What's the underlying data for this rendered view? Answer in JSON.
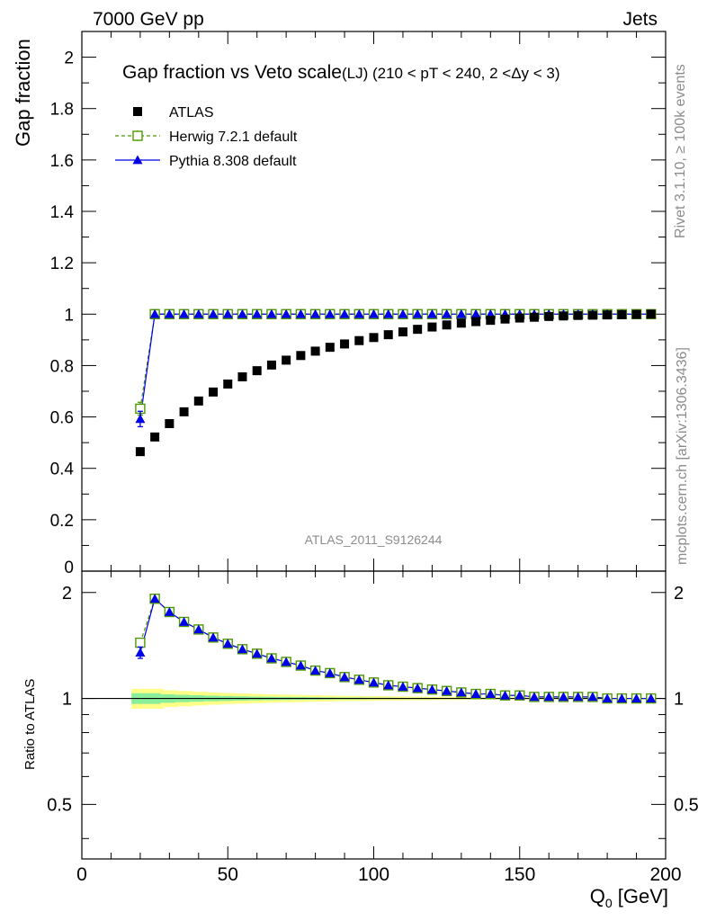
{
  "header": {
    "left": "7000 GeV pp",
    "right": "Jets"
  },
  "side_labels": {
    "top": "Rivet 3.1.10, ≥ 100k events",
    "bottom": "mcplots.cern.ch [arXiv:1306.3436]"
  },
  "watermark": "ATLAS_2011_S9126244",
  "chart_data": [
    {
      "panel": "main",
      "type": "scatter",
      "title": "Gap fraction vs Veto scale",
      "subtitle": "(LJ) (210 < pT < 240, 2 <Δy < 3)",
      "ylabel": "Gap fraction",
      "xlim": [
        0,
        200
      ],
      "ylim": [
        0,
        2.1
      ],
      "y_ticks": [
        "0",
        "0.2",
        "0.4",
        "0.6",
        "0.8",
        "1",
        "1.2",
        "1.4",
        "1.6",
        "1.8",
        "2"
      ],
      "legend_position": "top-left",
      "x": [
        20,
        25,
        30,
        35,
        40,
        45,
        50,
        55,
        60,
        65,
        70,
        75,
        80,
        85,
        90,
        95,
        100,
        105,
        110,
        115,
        120,
        125,
        130,
        135,
        140,
        145,
        150,
        155,
        160,
        165,
        170,
        175,
        180,
        185,
        190,
        195
      ],
      "series": [
        {
          "name": "ATLAS",
          "color": "#000000",
          "marker": "filled-square",
          "values": [
            0.465,
            0.522,
            0.574,
            0.62,
            0.662,
            0.697,
            0.728,
            0.756,
            0.78,
            0.802,
            0.821,
            0.839,
            0.856,
            0.871,
            0.884,
            0.897,
            0.909,
            0.92,
            0.931,
            0.941,
            0.95,
            0.958,
            0.965,
            0.971,
            0.976,
            0.981,
            0.985,
            0.988,
            0.991,
            0.993,
            0.995,
            0.996,
            0.997,
            0.998,
            0.999,
            1.0
          ]
        },
        {
          "name": "Herwig 7.2.1 default",
          "color": "#4d9900",
          "marker": "open-square",
          "line": "dashed",
          "values": [
            0.632,
            1.0,
            1.0,
            1.0,
            1.0,
            1.0,
            1.0,
            1.0,
            1.0,
            1.0,
            1.0,
            1.0,
            1.0,
            1.0,
            1.0,
            1.0,
            1.0,
            1.0,
            1.0,
            1.0,
            1.0,
            1.0,
            1.0,
            1.0,
            1.0,
            1.0,
            1.0,
            1.0,
            1.0,
            1.0,
            1.0,
            1.0,
            1.0,
            1.0,
            1.0,
            1.0
          ],
          "errors": [
            0.025,
            0,
            0,
            0,
            0,
            0,
            0,
            0,
            0,
            0,
            0,
            0,
            0,
            0,
            0,
            0,
            0,
            0,
            0,
            0,
            0,
            0,
            0,
            0,
            0,
            0,
            0,
            0,
            0,
            0,
            0,
            0,
            0,
            0,
            0,
            0
          ]
        },
        {
          "name": "Pythia 8.308 default",
          "color": "#0000e6",
          "marker": "filled-triangle",
          "line": "solid",
          "values": [
            0.592,
            1.0,
            1.0,
            1.0,
            1.0,
            1.0,
            1.0,
            1.0,
            1.0,
            1.0,
            1.0,
            1.0,
            1.0,
            1.0,
            1.0,
            1.0,
            1.0,
            1.0,
            1.0,
            1.0,
            1.0,
            1.0,
            1.0,
            1.0,
            1.0,
            1.0,
            1.0,
            1.0,
            1.0,
            1.0,
            1.0,
            1.0,
            1.0,
            1.0,
            1.0,
            1.0
          ],
          "errors": [
            0.03,
            0,
            0,
            0,
            0,
            0,
            0,
            0,
            0,
            0,
            0,
            0,
            0,
            0,
            0,
            0,
            0,
            0,
            0,
            0,
            0,
            0,
            0,
            0,
            0,
            0,
            0,
            0,
            0,
            0,
            0,
            0,
            0,
            0,
            0,
            0
          ]
        }
      ]
    },
    {
      "panel": "ratio",
      "type": "scatter",
      "ylabel": "Ratio to ATLAS",
      "xlabel": "Q",
      "xlabel_sub": "0",
      "xlabel_unit": " [GeV]",
      "xlim": [
        0,
        200
      ],
      "ylim": [
        0.35,
        2.3
      ],
      "y_ticks": [
        "0.5",
        "1",
        "2"
      ],
      "y_tick_values": [
        0.5,
        1,
        2
      ],
      "x_ticks": [
        "0",
        "50",
        "100",
        "150",
        "200"
      ],
      "x_tick_values": [
        0,
        50,
        100,
        150,
        200
      ],
      "x": [
        20,
        25,
        30,
        35,
        40,
        45,
        50,
        55,
        60,
        65,
        70,
        75,
        80,
        85,
        90,
        95,
        100,
        105,
        110,
        115,
        120,
        125,
        130,
        135,
        140,
        145,
        150,
        155,
        160,
        165,
        170,
        175,
        180,
        185,
        190,
        195
      ],
      "band_outer": [
        0.065,
        0.065,
        0.055,
        0.05,
        0.045,
        0.04,
        0.036,
        0.033,
        0.03,
        0.027,
        0.025,
        0.023,
        0.021,
        0.019,
        0.017,
        0.016,
        0.015,
        0.014,
        0.013,
        0.012,
        0.011,
        0.01,
        0.009,
        0.008,
        0.007,
        0.007,
        0.006,
        0.006,
        0.005,
        0.005,
        0.004,
        0.004,
        0.004,
        0.003,
        0.003,
        0.003
      ],
      "band_inner": [
        0.035,
        0.035,
        0.028,
        0.024,
        0.021,
        0.018,
        0.016,
        0.014,
        0.012,
        0.011,
        0.01,
        0.009,
        0.008,
        0.007,
        0.006,
        0.006,
        0.005,
        0.005,
        0.004,
        0.004,
        0.004,
        0.003,
        0.003,
        0.003,
        0.003,
        0.002,
        0.002,
        0.002,
        0.002,
        0.002,
        0.002,
        0.002,
        0.001,
        0.001,
        0.001,
        0.001
      ],
      "band_colors": {
        "outer": "#ffff88",
        "inner": "#88ee99"
      },
      "series": [
        {
          "name": "Herwig 7.2.1 default",
          "color": "#4d9900",
          "marker": "open-square",
          "values": [
            1.44,
            1.92,
            1.76,
            1.65,
            1.57,
            1.49,
            1.43,
            1.38,
            1.34,
            1.3,
            1.27,
            1.24,
            1.2,
            1.18,
            1.15,
            1.13,
            1.11,
            1.09,
            1.08,
            1.07,
            1.06,
            1.05,
            1.04,
            1.03,
            1.03,
            1.02,
            1.02,
            1.01,
            1.01,
            1.01,
            1.01,
            1.01,
            1.0,
            1.0,
            1.0,
            1.0
          ]
        },
        {
          "name": "Pythia 8.308 default",
          "color": "#0000e6",
          "marker": "filled-triangle",
          "values": [
            1.35,
            1.92,
            1.76,
            1.65,
            1.57,
            1.49,
            1.43,
            1.38,
            1.34,
            1.3,
            1.27,
            1.24,
            1.2,
            1.18,
            1.15,
            1.13,
            1.11,
            1.09,
            1.08,
            1.07,
            1.06,
            1.05,
            1.04,
            1.03,
            1.03,
            1.02,
            1.02,
            1.01,
            1.01,
            1.01,
            1.01,
            1.01,
            1.0,
            1.0,
            1.0,
            1.0
          ],
          "errors": [
            0.05,
            0,
            0,
            0,
            0,
            0,
            0,
            0,
            0,
            0,
            0,
            0,
            0,
            0,
            0,
            0,
            0,
            0,
            0,
            0,
            0,
            0,
            0,
            0,
            0,
            0,
            0,
            0,
            0,
            0,
            0,
            0,
            0,
            0,
            0,
            0
          ]
        }
      ]
    }
  ]
}
